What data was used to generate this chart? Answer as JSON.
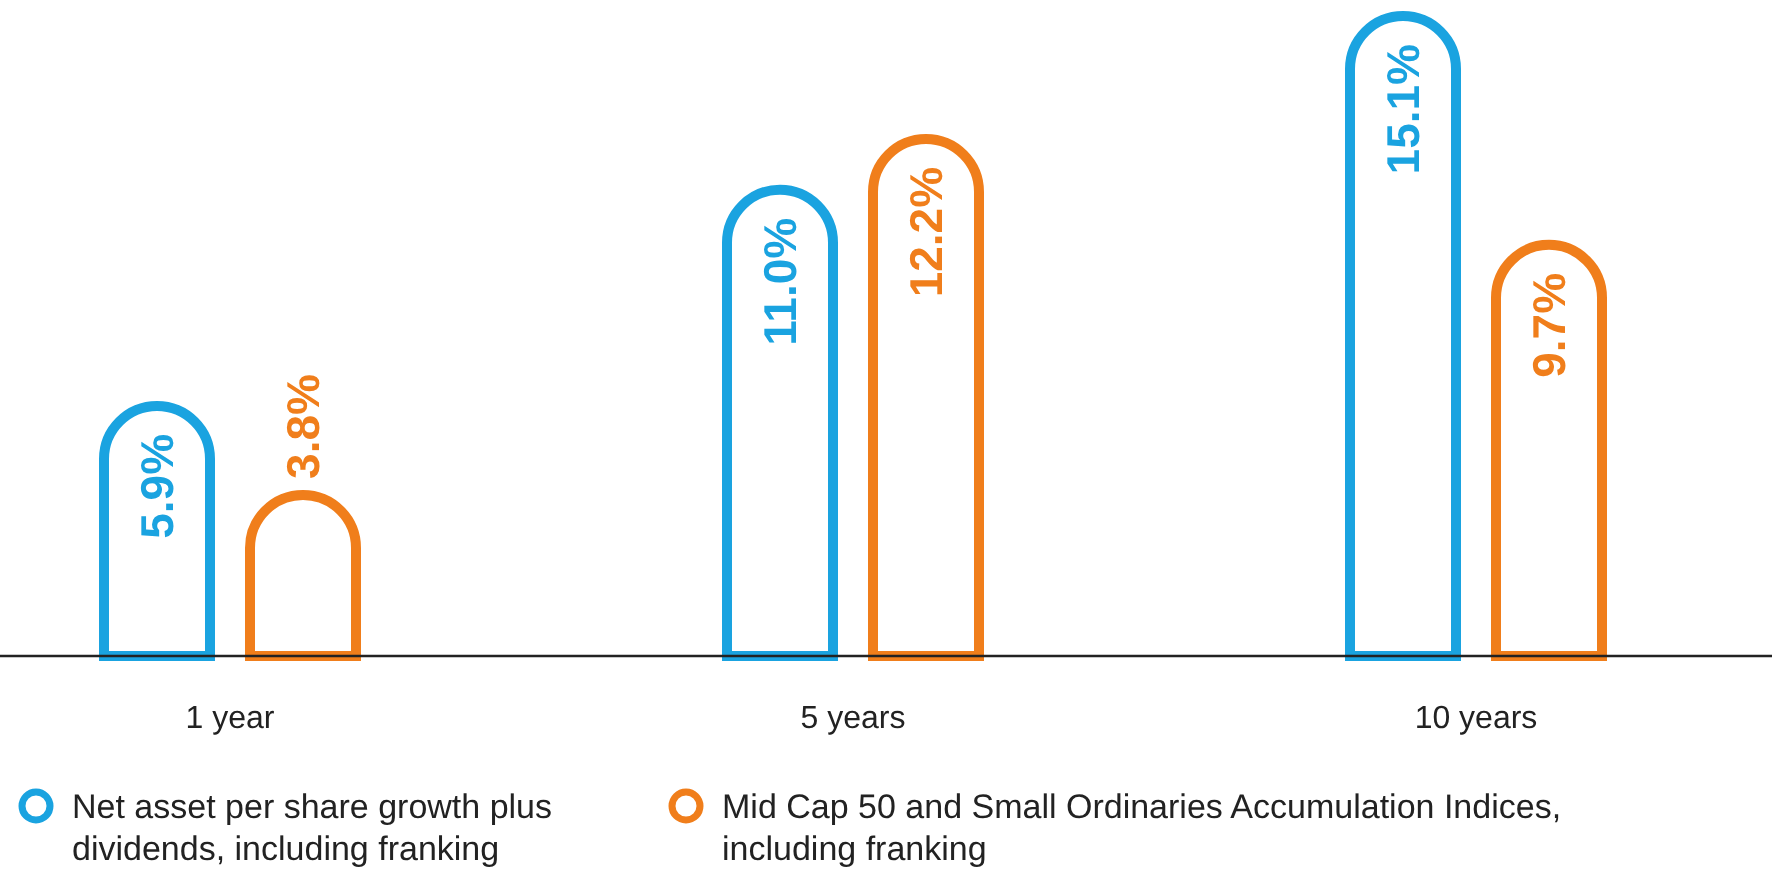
{
  "chart_data": {
    "type": "bar",
    "categories": [
      "1 year",
      "5 years",
      "10 years"
    ],
    "series": [
      {
        "name": "Net asset per share growth plus dividends, including franking",
        "color": "#1aa3e0",
        "values": [
          5.9,
          11.0,
          15.1
        ],
        "value_labels": [
          "5.9%",
          "11.0%",
          "15.1%"
        ]
      },
      {
        "name": "Mid Cap 50 and Small Ordinaries Accumulation Indices, including franking",
        "color": "#f07e1b",
        "values": [
          3.8,
          12.2,
          9.7
        ],
        "value_labels": [
          "3.8%",
          "12.2%",
          "9.7%"
        ]
      }
    ],
    "legend": "bottom"
  }
}
